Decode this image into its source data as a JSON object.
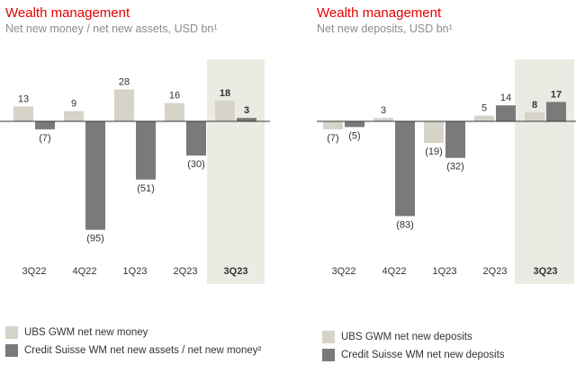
{
  "colors": {
    "ubs": "#d6d3c8",
    "cs": "#7a7a7a",
    "highlight": "#ecebe3",
    "axis": "#333333",
    "title": "#e60000",
    "subtitle": "#8c8c8c"
  },
  "chart_data": [
    {
      "type": "bar",
      "title": "Wealth management",
      "subtitle": "Net new money / net new assets, USD bn¹",
      "categories": [
        "3Q22",
        "4Q22",
        "1Q23",
        "2Q23",
        "3Q23"
      ],
      "highlight_category": "3Q23",
      "series": [
        {
          "name": "UBS GWM net new money",
          "values": [
            13,
            9,
            28,
            16,
            18
          ],
          "labels": [
            "13",
            "9",
            "28",
            "16",
            "18"
          ]
        },
        {
          "name": "Credit Suisse WM net new assets / net new money²",
          "values": [
            -7,
            -95,
            -51,
            -30,
            3
          ],
          "labels": [
            "(7)",
            "(95)",
            "(51)",
            "(30)",
            "3"
          ]
        }
      ],
      "ylim": [
        -105,
        43
      ]
    },
    {
      "type": "bar",
      "title": "Wealth management",
      "subtitle": "Net new deposits, USD bn¹",
      "categories": [
        "3Q22",
        "4Q22",
        "1Q23",
        "2Q23",
        "3Q23"
      ],
      "highlight_category": "3Q23",
      "series": [
        {
          "name": "UBS GWM net new deposits",
          "values": [
            -7,
            3,
            -19,
            5,
            8
          ],
          "labels": [
            "(7)",
            "3",
            "(19)",
            "5",
            "8"
          ]
        },
        {
          "name": "Credit Suisse WM net new deposits",
          "values": [
            -5,
            -83,
            -32,
            14,
            17
          ],
          "labels": [
            "(5)",
            "(83)",
            "(32)",
            "14",
            "17"
          ]
        }
      ],
      "ylim": [
        -105,
        43
      ]
    }
  ]
}
